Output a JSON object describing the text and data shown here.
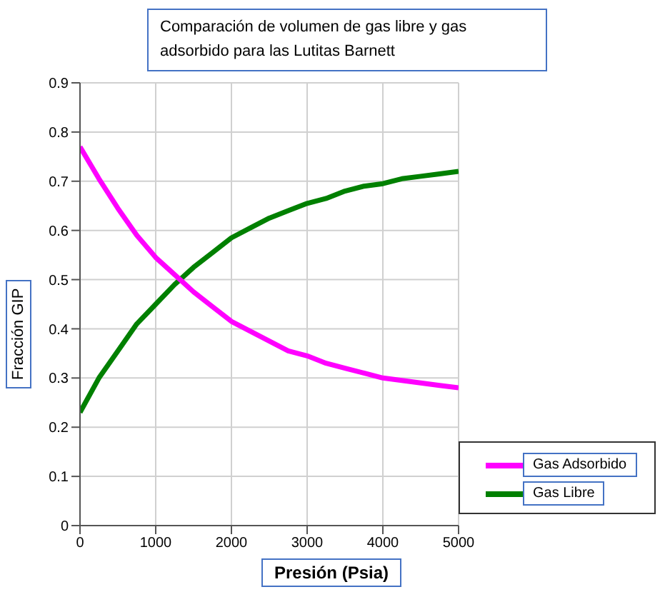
{
  "chart_data": {
    "type": "line",
    "title": "Comparación de  volumen de gas libre y gas adsorbido  para las Lutitas Barnett",
    "xlabel": "Presión (Psia)",
    "ylabel": "Fracción GIP",
    "x": [
      0,
      250,
      500,
      750,
      1000,
      1250,
      1500,
      1750,
      2000,
      2250,
      2500,
      2750,
      3000,
      3250,
      3500,
      3750,
      4000,
      4250,
      4500,
      4750,
      5000
    ],
    "series": [
      {
        "name": "Gas Libre",
        "color": "#008000",
        "values": [
          0.23,
          0.3,
          0.355,
          0.41,
          0.45,
          0.49,
          0.525,
          0.555,
          0.585,
          0.605,
          0.625,
          0.64,
          0.655,
          0.665,
          0.68,
          0.69,
          0.695,
          0.705,
          0.71,
          0.715,
          0.72
        ]
      },
      {
        "name": "Gas Adsorbido",
        "color": "#ff00ff",
        "values": [
          0.77,
          0.705,
          0.645,
          0.59,
          0.545,
          0.51,
          0.475,
          0.445,
          0.415,
          0.395,
          0.375,
          0.355,
          0.345,
          0.33,
          0.32,
          0.31,
          0.3,
          0.295,
          0.29,
          0.285,
          0.28
        ]
      }
    ],
    "xlim": [
      0,
      5000
    ],
    "xticks": [
      0,
      1000,
      2000,
      3000,
      4000,
      5000
    ],
    "ylim": [
      0,
      0.9
    ],
    "yticks": [
      0,
      0.1,
      0.2,
      0.3,
      0.4,
      0.5,
      0.6,
      0.7,
      0.8,
      0.9
    ],
    "grid": true,
    "legend": "bottom right",
    "marker": "none",
    "line_style": "solid"
  }
}
